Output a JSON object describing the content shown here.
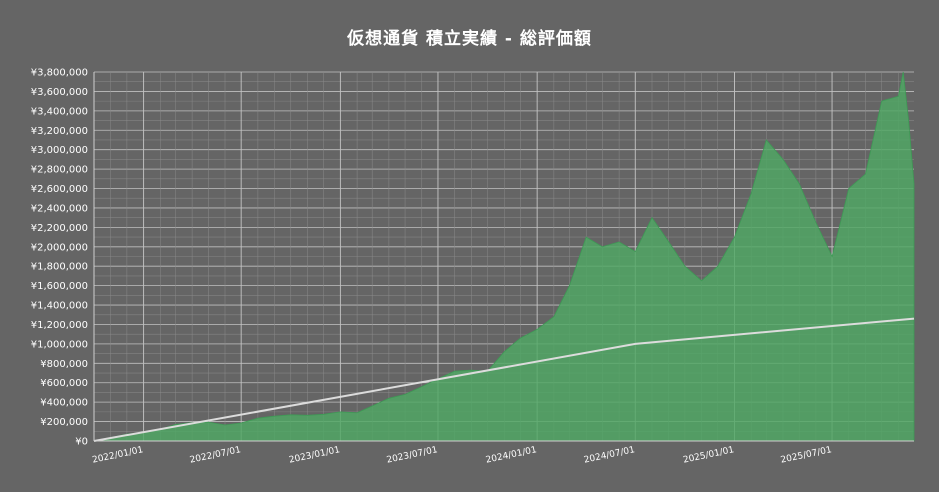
{
  "chart_data": {
    "type": "area",
    "title": "仮想通貨 積立実績 - 総評価額",
    "xlabel": "",
    "ylabel": "",
    "x_range": [
      "2021-10-01",
      "2025-11-30"
    ],
    "ylim": [
      0,
      3800000
    ],
    "y_ticks": [
      0,
      200000,
      400000,
      600000,
      800000,
      1000000,
      1200000,
      1400000,
      1600000,
      1800000,
      2000000,
      2200000,
      2400000,
      2600000,
      2800000,
      3000000,
      3200000,
      3400000,
      3600000,
      3800000
    ],
    "y_tick_labels": [
      "¥0",
      "¥200,000",
      "¥400,000",
      "¥600,000",
      "¥800,000",
      "¥1,000,000",
      "¥1,200,000",
      "¥1,400,000",
      "¥1,600,000",
      "¥1,800,000",
      "¥2,000,000",
      "¥2,200,000",
      "¥2,400,000",
      "¥2,600,000",
      "¥2,800,000",
      "¥3,000,000",
      "¥3,200,000",
      "¥3,400,000",
      "¥3,600,000",
      "¥3,800,000"
    ],
    "x_ticks": [
      "2022-01-01",
      "2022-07-01",
      "2023-01-01",
      "2023-07-01",
      "2024-01-01",
      "2024-07-01",
      "2025-01-01",
      "2025-07-01"
    ],
    "x_tick_labels": [
      "2022/01/01",
      "2022/07/01",
      "2023/01/01",
      "2023/07/01",
      "2024/01/01",
      "2024/07/01",
      "2025/01/01",
      "2025/07/01"
    ],
    "grid": true,
    "legend": "none",
    "series": [
      {
        "kind": "area",
        "color": "#4fa864",
        "points": [
          [
            "2021-10-01",
            0
          ],
          [
            "2021-11-01",
            35000
          ],
          [
            "2021-12-01",
            70000
          ],
          [
            "2022-01-01",
            90000
          ],
          [
            "2022-02-01",
            120000
          ],
          [
            "2022-03-01",
            170000
          ],
          [
            "2022-04-01",
            190000
          ],
          [
            "2022-05-01",
            195000
          ],
          [
            "2022-06-01",
            165000
          ],
          [
            "2022-07-01",
            185000
          ],
          [
            "2022-08-01",
            235000
          ],
          [
            "2022-09-01",
            255000
          ],
          [
            "2022-10-01",
            270000
          ],
          [
            "2022-11-01",
            265000
          ],
          [
            "2022-12-01",
            275000
          ],
          [
            "2023-01-01",
            300000
          ],
          [
            "2023-02-01",
            290000
          ],
          [
            "2023-03-01",
            360000
          ],
          [
            "2023-04-01",
            440000
          ],
          [
            "2023-05-01",
            480000
          ],
          [
            "2023-06-01",
            560000
          ],
          [
            "2023-07-01",
            640000
          ],
          [
            "2023-08-01",
            720000
          ],
          [
            "2023-09-01",
            730000
          ],
          [
            "2023-10-01",
            720000
          ],
          [
            "2023-11-01",
            920000
          ],
          [
            "2023-12-01",
            1060000
          ],
          [
            "2024-01-01",
            1150000
          ],
          [
            "2024-02-01",
            1280000
          ],
          [
            "2024-03-01",
            1600000
          ],
          [
            "2024-04-01",
            2100000
          ],
          [
            "2024-05-01",
            2000000
          ],
          [
            "2024-06-01",
            2050000
          ],
          [
            "2024-07-01",
            1950000
          ],
          [
            "2024-08-01",
            2300000
          ],
          [
            "2024-09-01",
            2050000
          ],
          [
            "2024-10-01",
            1800000
          ],
          [
            "2024-11-01",
            1650000
          ],
          [
            "2024-12-01",
            1800000
          ],
          [
            "2025-01-01",
            2100000
          ],
          [
            "2025-02-01",
            2550000
          ],
          [
            "2025-03-01",
            3100000
          ],
          [
            "2025-04-01",
            2900000
          ],
          [
            "2025-05-01",
            2650000
          ],
          [
            "2025-06-01",
            2250000
          ],
          [
            "2025-07-01",
            1900000
          ],
          [
            "2025-08-01",
            2600000
          ],
          [
            "2025-09-01",
            2750000
          ],
          [
            "2025-10-01",
            3500000
          ],
          [
            "2025-11-01",
            3550000
          ],
          [
            "2025-11-10",
            3800000
          ],
          [
            "2025-11-20",
            3300000
          ],
          [
            "2025-11-30",
            2650000
          ]
        ]
      },
      {
        "kind": "line",
        "color": "#dcdcdc",
        "points": [
          [
            "2021-10-01",
            0
          ],
          [
            "2024-07-01",
            1000000
          ],
          [
            "2025-11-30",
            1260000
          ]
        ]
      }
    ]
  }
}
